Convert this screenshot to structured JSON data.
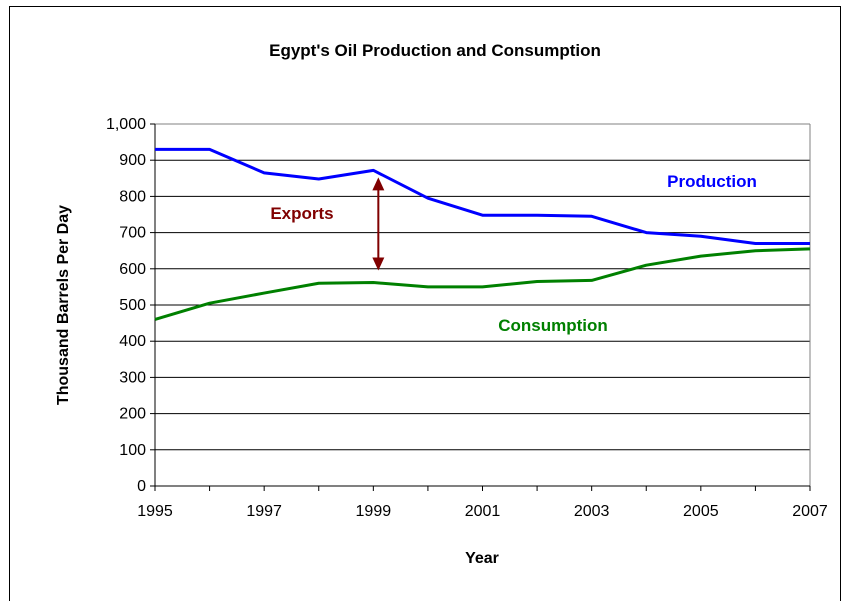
{
  "colors": {
    "production": "#0000ff",
    "consumption": "#008000",
    "exports": "#800000",
    "grid": "#000000"
  },
  "chart_data": {
    "type": "line",
    "title": "Egypt's Oil Production and Consumption",
    "xlabel": "Year",
    "ylabel": "Thousand Barrels Per Day",
    "xlim": [
      1995,
      2007
    ],
    "ylim": [
      0,
      1000
    ],
    "x_ticks": [
      "1995",
      "1997",
      "1999",
      "2001",
      "2003",
      "2005",
      "2007"
    ],
    "y_ticks": [
      "0",
      "100",
      "200",
      "300",
      "400",
      "500",
      "600",
      "700",
      "800",
      "900",
      "1,000"
    ],
    "grid": true,
    "x": [
      1995,
      1996,
      1997,
      1998,
      1999,
      2000,
      2001,
      2002,
      2003,
      2004,
      2005,
      2006,
      2007
    ],
    "series": [
      {
        "name": "Production",
        "values": [
          930,
          930,
          865,
          848,
          872,
          795,
          748,
          748,
          745,
          700,
          690,
          670,
          670
        ]
      },
      {
        "name": "Consumption",
        "values": [
          460,
          505,
          533,
          560,
          562,
          550,
          550,
          565,
          568,
          610,
          635,
          650,
          655
        ]
      }
    ],
    "annotations": [
      {
        "text": "Exports",
        "note": "double-headed arrow between production and consumption at 1999"
      }
    ]
  }
}
